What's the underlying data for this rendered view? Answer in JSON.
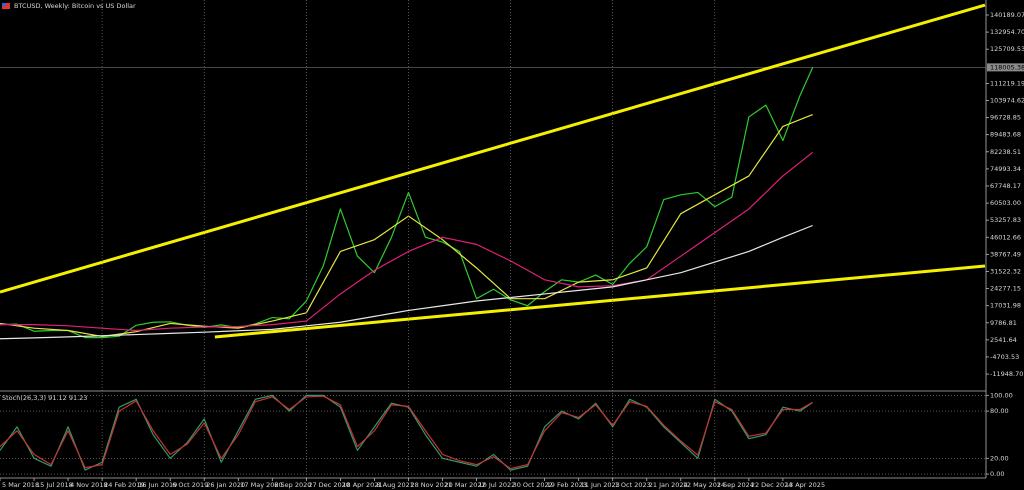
{
  "chart_data": [
    {
      "type": "line",
      "title": "BTCUSD, Weekly: Bitcoin vs US Dollar",
      "xlim": [
        0,
        463
      ],
      "ylim": [
        -18700,
        146550
      ],
      "grid": "x",
      "last_price": 118005.38,
      "yticks": [
        140189.07,
        {
          "value": 132954.7,
          "label": "132954.70"
        },
        125709.53,
        111219.19,
        103974.62,
        96728.85,
        89483.68,
        82238.51,
        74993.34,
        67748.17,
        {
          "value": 60503,
          "label": "60503.00"
        },
        53257.83,
        46012.66,
        38767.49,
        31522.32,
        24277.15,
        17031.98,
        9786.81,
        2541.64,
        -4703.53,
        {
          "value": -11948.7,
          "label": "-11948.70"
        }
      ],
      "series": [
        {
          "color": "#2ecc2e",
          "x": [
            0,
            8,
            16,
            24,
            32,
            40,
            48,
            56,
            64,
            72,
            80,
            88,
            96,
            104,
            112,
            120,
            128,
            136,
            144,
            152,
            160,
            168,
            176,
            184,
            192,
            200,
            208,
            216,
            224,
            232,
            240,
            248,
            256,
            264,
            272,
            280,
            288,
            296,
            304,
            312,
            320,
            328,
            336,
            344,
            352,
            360,
            368,
            376,
            382
          ],
          "values": [
            9000,
            9200,
            6200,
            6500,
            6500,
            3500,
            3500,
            4100,
            8700,
            10000,
            10200,
            8700,
            7800,
            8900,
            7700,
            9300,
            12000,
            11500,
            19000,
            34000,
            58000,
            38000,
            31000,
            46000,
            65000,
            46000,
            44000,
            40000,
            20000,
            24000,
            19500,
            17000,
            23000,
            28000,
            27000,
            30000,
            26000,
            35000,
            42000,
            62000,
            64000,
            65000,
            59000,
            63000,
            97000,
            102000,
            87000,
            106000,
            118005.38
          ]
        },
        {
          "color": "#e6e640",
          "x": [
            0,
            16,
            32,
            48,
            64,
            80,
            96,
            112,
            128,
            144,
            160,
            176,
            192,
            208,
            224,
            240,
            256,
            272,
            288,
            304,
            320,
            336,
            352,
            368,
            382
          ],
          "values": [
            9500,
            7500,
            6500,
            4000,
            6000,
            9500,
            8300,
            7500,
            10500,
            14000,
            40000,
            45000,
            55000,
            45000,
            33000,
            20000,
            20000,
            27000,
            28000,
            33000,
            56000,
            64000,
            72000,
            93000,
            98000
          ]
        },
        {
          "color": "#e0207a",
          "x": [
            0,
            16,
            32,
            48,
            64,
            80,
            96,
            112,
            128,
            144,
            160,
            176,
            192,
            208,
            224,
            240,
            256,
            272,
            288,
            304,
            320,
            336,
            352,
            368,
            382
          ],
          "values": [
            9000,
            9000,
            8500,
            7500,
            6500,
            7500,
            8000,
            8200,
            9000,
            10500,
            22000,
            32000,
            40000,
            46000,
            43000,
            36000,
            28000,
            25000,
            25500,
            28000,
            38000,
            48000,
            58000,
            72000,
            82000
          ]
        },
        {
          "color": "#e8e8e8",
          "x": [
            0,
            16,
            32,
            48,
            64,
            80,
            96,
            112,
            128,
            144,
            160,
            176,
            192,
            208,
            224,
            240,
            256,
            272,
            288,
            304,
            320,
            336,
            352,
            368,
            382
          ],
          "values": [
            3000,
            3400,
            3800,
            4300,
            4800,
            5300,
            5800,
            6400,
            7000,
            8500,
            10000,
            12500,
            15000,
            17000,
            19000,
            20500,
            22000,
            23500,
            25000,
            28000,
            31000,
            35500,
            40000,
            46000,
            51000
          ]
        },
        {
          "color": "#f5f000",
          "x": [
            0,
            463
          ],
          "values": [
            22824,
            144426
          ]
        },
        {
          "color": "#f5f000",
          "x": [
            101,
            463
          ],
          "values": [
            3759,
            33843
          ]
        }
      ]
    },
    {
      "type": "line",
      "title": "Stoch(26,3,3) 91.12 91.23",
      "xlim": [
        0,
        463
      ],
      "ylim": [
        -5,
        103
      ],
      "grid": "both",
      "yticks": [
        {
          "value": 100,
          "label": "100.00"
        },
        {
          "value": 80,
          "label": "80.00"
        },
        {
          "value": 20,
          "label": "20.00"
        },
        {
          "value": 0,
          "label": "0.00"
        }
      ],
      "xticks": [
        {
          "value": 0,
          "label": "5 Mar 2018"
        },
        {
          "value": 16,
          "label": "15 Jul 2018"
        },
        {
          "value": 32,
          "label": "4 Nov 2018"
        },
        {
          "value": 48,
          "label": "24 Feb 2019"
        },
        {
          "value": 64,
          "label": "16 Jun 2019"
        },
        {
          "value": 80,
          "label": "6 Oct 2019"
        },
        {
          "value": 96,
          "label": "26 Jan 2020"
        },
        {
          "value": 112,
          "label": "17 May 2020"
        },
        {
          "value": 128,
          "label": "6 Sep 2020"
        },
        {
          "value": 144,
          "label": "27 Dec 2020"
        },
        {
          "value": 160,
          "label": "18 Apr 2021"
        },
        {
          "value": 176,
          "label": "8 Aug 2021"
        },
        {
          "value": 192,
          "label": "28 Nov 2021"
        },
        {
          "value": 208,
          "label": "20 Mar 2022"
        },
        {
          "value": 224,
          "label": "10 Jul 2022"
        },
        {
          "value": 240,
          "label": "30 Oct 2022"
        },
        {
          "value": 256,
          "label": "19 Feb 2023"
        },
        {
          "value": 272,
          "label": "11 Jun 2023"
        },
        {
          "value": 288,
          "label": "1 Oct 2023"
        },
        {
          "value": 304,
          "label": "21 Jan 2024"
        },
        {
          "value": 320,
          "label": "12 May 2024"
        },
        {
          "value": 336,
          "label": "1 Sep 2024"
        },
        {
          "value": 352,
          "label": "22 Dec 2024"
        },
        {
          "value": 368,
          "label": "13 Apr 2025"
        }
      ],
      "series": [
        {
          "color": "#2e9b6a",
          "x": [
            0,
            8,
            16,
            24,
            32,
            40,
            48,
            56,
            64,
            72,
            80,
            88,
            96,
            104,
            112,
            120,
            128,
            136,
            144,
            152,
            160,
            168,
            176,
            184,
            192,
            200,
            208,
            216,
            224,
            232,
            240,
            248,
            256,
            264,
            272,
            280,
            288,
            296,
            304,
            312,
            320,
            328,
            336,
            344,
            352,
            360,
            368,
            376,
            382
          ],
          "values": [
            30,
            60,
            20,
            10,
            60,
            5,
            15,
            85,
            95,
            50,
            20,
            40,
            70,
            15,
            55,
            95,
            100,
            80,
            100,
            100,
            85,
            30,
            60,
            90,
            85,
            50,
            20,
            15,
            10,
            25,
            5,
            10,
            60,
            80,
            70,
            90,
            60,
            95,
            85,
            60,
            40,
            20,
            95,
            80,
            45,
            50,
            85,
            80,
            91.12
          ]
        },
        {
          "color": "#c83232",
          "x": [
            0,
            8,
            16,
            24,
            32,
            40,
            48,
            56,
            64,
            72,
            80,
            88,
            96,
            104,
            112,
            120,
            128,
            136,
            144,
            152,
            160,
            168,
            176,
            184,
            192,
            200,
            208,
            216,
            224,
            232,
            240,
            248,
            256,
            264,
            272,
            280,
            288,
            296,
            304,
            312,
            320,
            328,
            336,
            344,
            352,
            360,
            368,
            376,
            382
          ],
          "values": [
            35,
            55,
            25,
            12,
            55,
            8,
            12,
            80,
            93,
            55,
            25,
            38,
            65,
            20,
            50,
            92,
            98,
            82,
            98,
            99,
            88,
            35,
            55,
            88,
            86,
            55,
            25,
            17,
            12,
            22,
            7,
            12,
            55,
            78,
            72,
            88,
            62,
            92,
            86,
            62,
            42,
            24,
            92,
            82,
            48,
            52,
            82,
            82,
            91.23
          ]
        }
      ]
    }
  ]
}
